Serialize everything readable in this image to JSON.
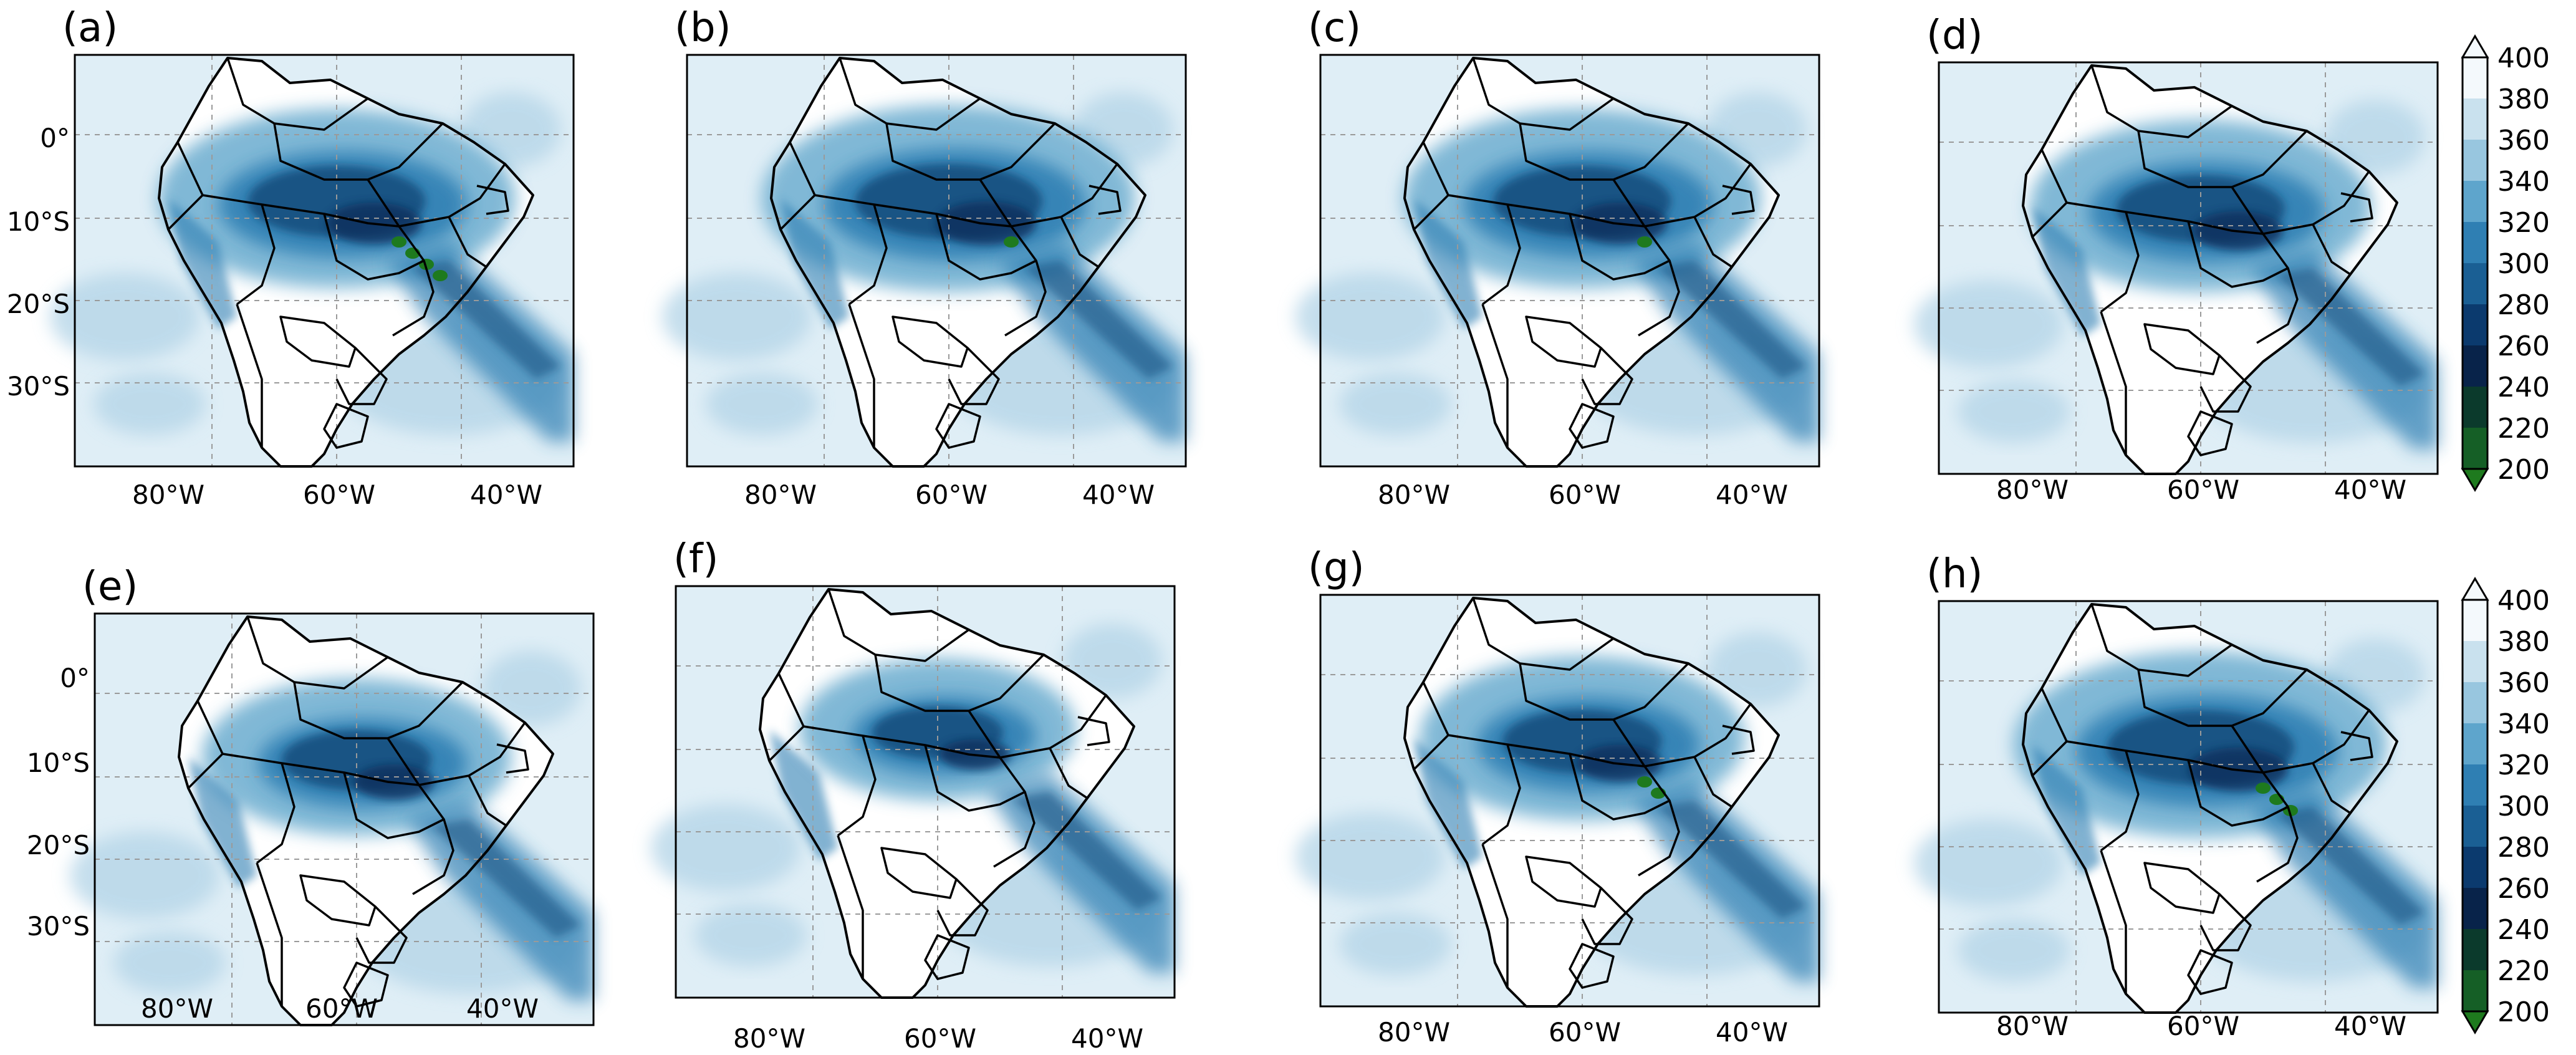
{
  "figure": {
    "description_free": true,
    "colors": {
      "water_white": "#ffffff",
      "ocean_light": "#dfeef6",
      "light_blue": "#b6d6e8",
      "mid_blue": "#6aaccf",
      "blue": "#2f7fb3",
      "dark_blue": "#15507f",
      "navy": "#0b2f5c",
      "green": "#1e7a1e",
      "border": "#000000",
      "grid": "#9a9a9a"
    },
    "icons": {
      "colorbar_extend_up": "triangle-up-icon",
      "colorbar_extend_down": "triangle-down-icon"
    }
  },
  "panels": [
    {
      "label": "(a)",
      "lat_ticks": [
        "0°",
        "10°S",
        "20°S",
        "30°S"
      ],
      "lon_ticks": [
        "80°W",
        "60°W",
        "40°W"
      ],
      "intensity": 0.95,
      "green_spots": 4
    },
    {
      "label": "(b)",
      "lat_ticks": [],
      "lon_ticks": [
        "80°W",
        "60°W",
        "40°W"
      ],
      "intensity": 1.0,
      "green_spots": 1
    },
    {
      "label": "(c)",
      "lat_ticks": [],
      "lon_ticks": [
        "80°W",
        "60°W",
        "40°W"
      ],
      "intensity": 0.95,
      "green_spots": 1
    },
    {
      "label": "(d)",
      "lat_ticks": [],
      "lon_ticks": [
        "80°W",
        "60°W",
        "40°W"
      ],
      "intensity": 0.9,
      "green_spots": 0
    },
    {
      "label": "(e)",
      "lat_ticks": [
        "0°",
        "10°S",
        "20°S",
        "30°S"
      ],
      "lon_ticks": [
        "80°W",
        "60°W",
        "40°W"
      ],
      "intensity": 0.8,
      "green_spots": 0
    },
    {
      "label": "(f)",
      "lat_ticks": [],
      "lon_ticks": [
        "80°W",
        "60°W",
        "40°W"
      ],
      "intensity": 0.7,
      "green_spots": 0
    },
    {
      "label": "(g)",
      "lat_ticks": [],
      "lon_ticks": [
        "80°W",
        "60°W",
        "40°W"
      ],
      "intensity": 0.85,
      "green_spots": 2
    },
    {
      "label": "(h)",
      "lat_ticks": [],
      "lon_ticks": [
        "80°W",
        "60°W",
        "40°W"
      ],
      "intensity": 1.0,
      "green_spots": 3
    }
  ],
  "colorbars": [
    {
      "ticks": [
        "400",
        "380",
        "360",
        "340",
        "320",
        "300",
        "280",
        "260",
        "240",
        "220",
        "200"
      ],
      "values": [
        400,
        380,
        360,
        340,
        320,
        300,
        280,
        260,
        240,
        220,
        200
      ],
      "extend": "both"
    },
    {
      "ticks": [
        "400",
        "380",
        "360",
        "340",
        "320",
        "300",
        "280",
        "260",
        "240",
        "220",
        "200"
      ],
      "values": [
        400,
        380,
        360,
        340,
        320,
        300,
        280,
        260,
        240,
        220,
        200
      ],
      "extend": "both"
    }
  ],
  "colorbar_colors": [
    "#f4f9fc",
    "#c9e1ee",
    "#98c6df",
    "#5ea5cc",
    "#2f7fb3",
    "#1a5f94",
    "#0b3a6e",
    "#08234a",
    "#0b3a2c",
    "#155f26",
    "#1e7a1e"
  ]
}
